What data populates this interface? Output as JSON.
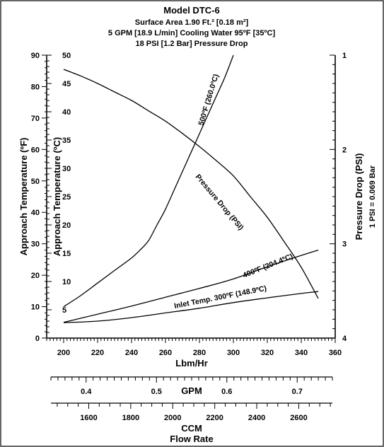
{
  "chart_data": {
    "type": "line",
    "title": "Model DTC-6",
    "subtitles": [
      "Surface Area 1.90 Ft.² [0.18 m²]",
      "5 GPM [18.9 L/min] Cooling Water 95ºF [35ºC]",
      "18 PSI [1.2 Bar] Pressure Drop"
    ],
    "xlabel": "Lbm/Hr",
    "ylabel_left_f": "Approach Temperature (ºF)",
    "ylabel_left_c": "Approach Temperature (ºC)",
    "ylabel_right": "Pressure Drop (PSI)",
    "ylabel_right_note": "1 PSI = 0.069 Bar",
    "xlim": [
      190,
      360
    ],
    "ylim_f": [
      0,
      90
    ],
    "ylim_c": [
      0,
      50
    ],
    "ylim_psi": [
      1,
      4
    ],
    "x_ticks": [
      "200",
      "220",
      "240",
      "260",
      "280",
      "300",
      "320",
      "340",
      "360"
    ],
    "y_ticks_f": [
      "0",
      "10",
      "20",
      "30",
      "40",
      "50",
      "60",
      "70",
      "80",
      "90"
    ],
    "y_ticks_c": [
      "5",
      "10",
      "15",
      "20",
      "25",
      "30",
      "35",
      "40",
      "45",
      "50"
    ],
    "y_ticks_psi": [
      "1",
      "2",
      "3",
      "4"
    ],
    "secondary_axes": [
      {
        "label": "GPM",
        "range": [
          0.35,
          0.75
        ],
        "ticks": [
          "0.4",
          "0.5",
          "0.6",
          "0.7"
        ]
      },
      {
        "label": "CCM",
        "range": [
          1420,
          2760
        ],
        "ticks": [
          "1600",
          "1800",
          "2000",
          "2200",
          "2400",
          "2600"
        ]
      }
    ],
    "footer_label": "Flow Rate",
    "series": [
      {
        "name": "500ºF (260.0ºC)",
        "x": [
          200,
          210,
          220,
          230,
          240,
          245,
          250,
          255,
          260,
          265,
          270,
          275,
          280,
          285,
          290,
          295,
          300
        ],
        "y": [
          10,
          13.5,
          17.5,
          21.5,
          25.5,
          28,
          31,
          36,
          41,
          47,
          53,
          59,
          65,
          71,
          77,
          83,
          90
        ]
      },
      {
        "name": "400ºF (204.4ºC)",
        "x": [
          200,
          220,
          240,
          260,
          280,
          300,
          320,
          340,
          350
        ],
        "y": [
          5,
          7.6,
          10.2,
          13,
          15.8,
          18.8,
          22.7,
          26.3,
          28
        ]
      },
      {
        "name": "Inlet Temp. 300ºF (148.9ºC)",
        "x": [
          200,
          220,
          240,
          260,
          280,
          300,
          320,
          340,
          350
        ],
        "y": [
          4.9,
          5.4,
          6.5,
          8,
          9.5,
          11.3,
          12.8,
          14.2,
          14.8
        ]
      },
      {
        "name": "Pressure Drop (PSI)",
        "axis": "psi",
        "x": [
          200,
          210,
          220,
          230,
          240,
          250,
          260,
          270,
          280,
          290,
          300,
          310,
          320,
          330,
          340,
          350
        ],
        "y": [
          1.15,
          1.22,
          1.3,
          1.39,
          1.48,
          1.59,
          1.7,
          1.83,
          1.97,
          2.12,
          2.28,
          2.5,
          2.72,
          2.98,
          3.25,
          3.58
        ]
      }
    ]
  }
}
